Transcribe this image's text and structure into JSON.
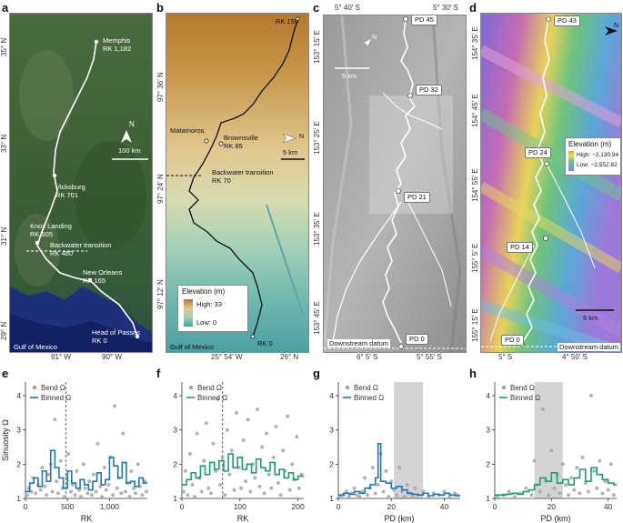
{
  "panels": {
    "a": {
      "label": "a",
      "lat_ticks": [
        "35° N",
        "33° N",
        "31° N",
        "29° N"
      ],
      "lon_ticks": [
        "91° W",
        "90° W"
      ],
      "sites": [
        {
          "name": "Memphis",
          "rk": "RK 1,182"
        },
        {
          "name": "Vicksburg",
          "rk": "RK 701"
        },
        {
          "name": "Knox Landing",
          "rk": "RK 505"
        },
        {
          "name": "Backwater transition",
          "rk": "RK 480"
        },
        {
          "name": "New Orleans",
          "rk": "RK 165"
        },
        {
          "name": "Head of Passes",
          "rk": "RK 0"
        }
      ],
      "scale_label": "100 km",
      "north_label": "N",
      "sea_label": "Gulf of Mexico"
    },
    "b": {
      "label": "b",
      "lat_ticks": [
        "97° 36′ N",
        "97° 24′ N",
        "97° 12′ N"
      ],
      "lon_ticks": [
        "25° 54′ W",
        "26° N"
      ],
      "sites": [
        {
          "name": "RK 150",
          "rk": ""
        },
        {
          "name": "Matamoros",
          "rk": ""
        },
        {
          "name": "Brownsville",
          "rk": "RK 85"
        },
        {
          "name": "Backwater transition",
          "rk": "RK 70"
        },
        {
          "name": "RK 0",
          "rk": ""
        }
      ],
      "scale_label": "5 km",
      "north_label": "N",
      "sea_label": "Gulf of Mexico",
      "legend_title": "Elevation (m)",
      "legend_high": "High: 33",
      "legend_low": "Low: 0"
    },
    "c": {
      "label": "c",
      "lat_ticks": [
        "153° 15′ E",
        "153° 25′ E",
        "153° 35′ E",
        "153° 45′ E"
      ],
      "lon_top": [
        "5° 40′ S",
        "5° 30′ S"
      ],
      "lon_bottom": [
        "6° 5′ S",
        "5° 55′ S"
      ],
      "pd_labels": [
        "PD 45",
        "PD 32",
        "PD 21",
        "PD 0"
      ],
      "scale_label": "5 km",
      "north_label": "N",
      "datum_label": "Downstream datum"
    },
    "d": {
      "label": "d",
      "lat_ticks": [
        "154° 35′ E",
        "154° 45′ E",
        "154° 55′ E",
        "155° 5′ E",
        "155° 15′ E"
      ],
      "lon_bottom": [
        "5° S",
        "4° 50′ S"
      ],
      "pd_labels": [
        "PD 43",
        "PD 24",
        "PD 14",
        "PD 0"
      ],
      "scale_label": "5 km",
      "north_label": "N",
      "datum_label": "Downstream datum",
      "legend_title": "Elevation (m)",
      "legend_high": "High: −2,130.94",
      "legend_low": "Low: −2,552.82"
    }
  },
  "legend": {
    "bend": "Bend Ω",
    "binned": "Binned Ω"
  },
  "colors": {
    "blue": "#1f77b4",
    "green": "#1a9e77",
    "gray": "#a6a6a6",
    "shade": "#d4d4d4"
  },
  "chart_data": [
    {
      "id": "e",
      "label": "e",
      "type": "scatter",
      "xlabel": "RK",
      "ylabel": "Sinuosity Ω",
      "xlim": [
        0,
        1450
      ],
      "ylim": [
        1,
        4.4
      ],
      "xticks": [
        0,
        500,
        1000
      ],
      "xticklabels": [
        "0",
        "500",
        "1,000"
      ],
      "yticks": [
        1,
        2,
        3,
        4
      ],
      "yticklabels": [
        "1",
        "2",
        "3",
        "4"
      ],
      "vline": 480,
      "shade": null,
      "binned_color": "#1f77b4",
      "bend_points": [
        [
          20,
          1.1
        ],
        [
          40,
          1.3
        ],
        [
          70,
          1.2
        ],
        [
          90,
          1.6
        ],
        [
          120,
          1.15
        ],
        [
          150,
          1.4
        ],
        [
          180,
          1.25
        ],
        [
          200,
          1.9
        ],
        [
          230,
          1.35
        ],
        [
          250,
          1.1
        ],
        [
          270,
          1.7
        ],
        [
          300,
          2.0
        ],
        [
          320,
          1.2
        ],
        [
          350,
          3.3
        ],
        [
          370,
          1.5
        ],
        [
          390,
          1.15
        ],
        [
          420,
          2.1
        ],
        [
          440,
          1.3
        ],
        [
          460,
          1.05
        ],
        [
          490,
          1.6
        ],
        [
          510,
          2.3
        ],
        [
          540,
          1.2
        ],
        [
          560,
          1.4
        ],
        [
          590,
          1.1
        ],
        [
          610,
          1.8
        ],
        [
          640,
          1.25
        ],
        [
          660,
          1.05
        ],
        [
          690,
          2.0
        ],
        [
          710,
          1.3
        ],
        [
          740,
          1.15
        ],
        [
          760,
          1.5
        ],
        [
          790,
          1.1
        ],
        [
          810,
          1.7
        ],
        [
          840,
          1.2
        ],
        [
          860,
          2.6
        ],
        [
          890,
          1.35
        ],
        [
          910,
          1.05
        ],
        [
          940,
          1.9
        ],
        [
          960,
          1.25
        ],
        [
          990,
          1.4
        ],
        [
          1010,
          2.2
        ],
        [
          1040,
          1.1
        ],
        [
          1060,
          3.7
        ],
        [
          1090,
          1.3
        ],
        [
          1110,
          1.6
        ],
        [
          1140,
          1.15
        ],
        [
          1160,
          2.9
        ],
        [
          1190,
          1.2
        ],
        [
          1210,
          1.45
        ],
        [
          1240,
          1.05
        ],
        [
          1260,
          1.8
        ],
        [
          1290,
          1.3
        ],
        [
          1310,
          1.15
        ],
        [
          1340,
          2.0
        ],
        [
          1360,
          1.35
        ],
        [
          1390,
          1.1
        ],
        [
          1420,
          1.5
        ],
        [
          1440,
          1.2
        ]
      ],
      "binned": [
        [
          0,
          1.2
        ],
        [
          50,
          1.45
        ],
        [
          100,
          1.6
        ],
        [
          150,
          1.35
        ],
        [
          200,
          1.8
        ],
        [
          250,
          1.5
        ],
        [
          300,
          2.4
        ],
        [
          350,
          1.9
        ],
        [
          400,
          1.6
        ],
        [
          450,
          1.3
        ],
        [
          500,
          1.8
        ],
        [
          550,
          1.45
        ],
        [
          600,
          1.3
        ],
        [
          650,
          1.55
        ],
        [
          700,
          1.4
        ],
        [
          750,
          1.25
        ],
        [
          800,
          1.5
        ],
        [
          850,
          1.75
        ],
        [
          900,
          1.4
        ],
        [
          950,
          1.55
        ],
        [
          1000,
          2.2
        ],
        [
          1050,
          1.95
        ],
        [
          1100,
          1.6
        ],
        [
          1150,
          2.05
        ],
        [
          1200,
          1.45
        ],
        [
          1250,
          1.5
        ],
        [
          1300,
          1.35
        ],
        [
          1350,
          1.6
        ],
        [
          1400,
          1.45
        ],
        [
          1450,
          1.45
        ]
      ]
    },
    {
      "id": "f",
      "label": "f",
      "type": "scatter",
      "xlabel": "RK",
      "ylabel": "",
      "xlim": [
        0,
        210
      ],
      "ylim": [
        1,
        4.4
      ],
      "xticks": [
        0,
        100,
        200
      ],
      "xticklabels": [
        "0",
        "100",
        "200"
      ],
      "yticks": [
        1,
        2,
        3,
        4
      ],
      "yticklabels": [
        "1",
        "2",
        "3",
        "4"
      ],
      "vline": 70,
      "shade": null,
      "binned_color": "#1a9e77",
      "bend_points": [
        [
          3,
          1.2
        ],
        [
          6,
          1.8
        ],
        [
          10,
          1.1
        ],
        [
          14,
          2.3
        ],
        [
          18,
          1.4
        ],
        [
          22,
          1.05
        ],
        [
          26,
          2.9
        ],
        [
          30,
          1.6
        ],
        [
          34,
          1.2
        ],
        [
          38,
          2.1
        ],
        [
          42,
          3.2
        ],
        [
          46,
          1.3
        ],
        [
          50,
          1.15
        ],
        [
          54,
          2.6
        ],
        [
          58,
          1.8
        ],
        [
          62,
          3.9
        ],
        [
          66,
          1.4
        ],
        [
          70,
          2.2
        ],
        [
          74,
          1.1
        ],
        [
          78,
          3.0
        ],
        [
          82,
          1.7
        ],
        [
          86,
          2.4
        ],
        [
          90,
          1.25
        ],
        [
          94,
          3.5
        ],
        [
          98,
          1.9
        ],
        [
          102,
          1.3
        ],
        [
          106,
          2.7
        ],
        [
          110,
          1.5
        ],
        [
          114,
          3.3
        ],
        [
          118,
          1.2
        ],
        [
          122,
          2.0
        ],
        [
          126,
          1.6
        ],
        [
          130,
          3.6
        ],
        [
          134,
          1.35
        ],
        [
          138,
          2.5
        ],
        [
          142,
          1.15
        ],
        [
          146,
          2.9
        ],
        [
          150,
          1.7
        ],
        [
          154,
          1.3
        ],
        [
          158,
          2.2
        ],
        [
          162,
          3.1
        ],
        [
          166,
          1.45
        ],
        [
          170,
          1.1
        ],
        [
          174,
          2.4
        ],
        [
          178,
          1.8
        ],
        [
          182,
          3.4
        ],
        [
          186,
          1.25
        ],
        [
          190,
          2.0
        ],
        [
          194,
          1.55
        ],
        [
          198,
          2.8
        ],
        [
          202,
          1.3
        ],
        [
          206,
          1.7
        ]
      ],
      "binned": [
        [
          0,
          1.4
        ],
        [
          8,
          1.55
        ],
        [
          16,
          1.75
        ],
        [
          24,
          1.6
        ],
        [
          32,
          1.95
        ],
        [
          40,
          1.7
        ],
        [
          48,
          2.05
        ],
        [
          56,
          1.85
        ],
        [
          64,
          2.1
        ],
        [
          72,
          1.8
        ],
        [
          80,
          2.3
        ],
        [
          88,
          1.9
        ],
        [
          96,
          2.2
        ],
        [
          104,
          1.85
        ],
        [
          112,
          2.0
        ],
        [
          120,
          1.75
        ],
        [
          128,
          2.15
        ],
        [
          136,
          1.9
        ],
        [
          144,
          1.8
        ],
        [
          152,
          2.05
        ],
        [
          160,
          1.7
        ],
        [
          168,
          1.85
        ],
        [
          176,
          1.6
        ],
        [
          184,
          1.75
        ],
        [
          192,
          1.55
        ],
        [
          200,
          1.65
        ],
        [
          210,
          1.65
        ]
      ]
    },
    {
      "id": "g",
      "label": "g",
      "type": "scatter",
      "xlabel": "PD (km)",
      "ylabel": "",
      "xlim": [
        0,
        46
      ],
      "ylim": [
        1,
        4.4
      ],
      "xticks": [
        0,
        20,
        40
      ],
      "xticklabels": [
        "0",
        "20",
        "40"
      ],
      "yticks": [
        1,
        2,
        3,
        4
      ],
      "yticklabels": [
        "1",
        "2",
        "3",
        "4"
      ],
      "vline": null,
      "shade": [
        21,
        32
      ],
      "binned_color": "#1f77b4",
      "bend_points": [
        [
          1,
          1.05
        ],
        [
          2,
          1.1
        ],
        [
          3,
          1.2
        ],
        [
          4,
          1.05
        ],
        [
          5,
          1.15
        ],
        [
          6,
          1.3
        ],
        [
          7,
          1.1
        ],
        [
          8,
          1.05
        ],
        [
          9,
          1.2
        ],
        [
          10,
          1.6
        ],
        [
          11,
          1.1
        ],
        [
          12,
          1.3
        ],
        [
          13,
          1.9
        ],
        [
          14,
          1.15
        ],
        [
          15,
          1.4
        ],
        [
          16,
          2.3
        ],
        [
          17,
          1.2
        ],
        [
          18,
          1.8
        ],
        [
          19,
          1.05
        ],
        [
          20,
          1.5
        ],
        [
          21,
          1.25
        ],
        [
          22,
          1.1
        ],
        [
          23,
          1.9
        ],
        [
          24,
          1.2
        ],
        [
          25,
          1.05
        ],
        [
          26,
          1.4
        ],
        [
          27,
          1.15
        ],
        [
          28,
          1.05
        ],
        [
          29,
          1.3
        ],
        [
          30,
          1.1
        ],
        [
          32,
          1.2
        ],
        [
          34,
          1.05
        ],
        [
          36,
          1.15
        ],
        [
          38,
          1.1
        ],
        [
          40,
          1.2
        ],
        [
          42,
          1.05
        ],
        [
          44,
          1.15
        ],
        [
          45,
          1.1
        ]
      ],
      "binned": [
        [
          0,
          1.1
        ],
        [
          2,
          1.15
        ],
        [
          4,
          1.12
        ],
        [
          6,
          1.2
        ],
        [
          8,
          1.15
        ],
        [
          10,
          1.3
        ],
        [
          12,
          1.4
        ],
        [
          14,
          1.6
        ],
        [
          15,
          2.6
        ],
        [
          16,
          1.5
        ],
        [
          18,
          1.45
        ],
        [
          20,
          1.3
        ],
        [
          22,
          1.35
        ],
        [
          24,
          1.25
        ],
        [
          26,
          1.15
        ],
        [
          28,
          1.12
        ],
        [
          30,
          1.1
        ],
        [
          32,
          1.15
        ],
        [
          34,
          1.08
        ],
        [
          36,
          1.12
        ],
        [
          38,
          1.1
        ],
        [
          40,
          1.15
        ],
        [
          42,
          1.1
        ],
        [
          44,
          1.08
        ],
        [
          46,
          1.08
        ]
      ]
    },
    {
      "id": "h",
      "label": "h",
      "type": "scatter",
      "xlabel": "PD (km)",
      "ylabel": "",
      "xlim": [
        0,
        43
      ],
      "ylim": [
        1,
        4.4
      ],
      "xticks": [
        0,
        20,
        40
      ],
      "xticklabels": [
        "0",
        "20",
        "40"
      ],
      "yticks": [
        1,
        2,
        3,
        4
      ],
      "yticklabels": [
        "1",
        "2",
        "3",
        "4"
      ],
      "vline": null,
      "shade": [
        14,
        24
      ],
      "binned_color": "#1a9e77",
      "bend_points": [
        [
          1,
          1.05
        ],
        [
          3,
          1.1
        ],
        [
          5,
          1.2
        ],
        [
          7,
          1.05
        ],
        [
          9,
          1.15
        ],
        [
          11,
          1.3
        ],
        [
          13,
          1.1
        ],
        [
          14,
          2.1
        ],
        [
          15,
          1.4
        ],
        [
          16,
          1.2
        ],
        [
          17,
          3.6
        ],
        [
          18,
          1.5
        ],
        [
          19,
          1.1
        ],
        [
          20,
          2.4
        ],
        [
          21,
          1.3
        ],
        [
          22,
          1.7
        ],
        [
          23,
          1.15
        ],
        [
          24,
          2.0
        ],
        [
          25,
          1.4
        ],
        [
          26,
          1.1
        ],
        [
          27,
          1.6
        ],
        [
          28,
          1.25
        ],
        [
          29,
          1.9
        ],
        [
          30,
          1.15
        ],
        [
          31,
          2.2
        ],
        [
          32,
          1.45
        ],
        [
          33,
          1.2
        ],
        [
          34,
          4.0
        ],
        [
          35,
          1.8
        ],
        [
          36,
          1.3
        ],
        [
          37,
          2.1
        ],
        [
          38,
          1.15
        ],
        [
          39,
          1.5
        ],
        [
          40,
          1.25
        ],
        [
          41,
          2.0
        ],
        [
          42,
          1.1
        ]
      ],
      "binned": [
        [
          0,
          1.1
        ],
        [
          2,
          1.1
        ],
        [
          4,
          1.12
        ],
        [
          6,
          1.15
        ],
        [
          8,
          1.12
        ],
        [
          10,
          1.2
        ],
        [
          12,
          1.25
        ],
        [
          14,
          1.4
        ],
        [
          16,
          1.6
        ],
        [
          18,
          1.5
        ],
        [
          20,
          1.75
        ],
        [
          22,
          1.45
        ],
        [
          24,
          1.55
        ],
        [
          26,
          1.4
        ],
        [
          28,
          1.6
        ],
        [
          30,
          1.85
        ],
        [
          32,
          1.5
        ],
        [
          34,
          1.9
        ],
        [
          36,
          1.7
        ],
        [
          38,
          1.55
        ],
        [
          40,
          1.45
        ],
        [
          42,
          1.4
        ],
        [
          43,
          1.4
        ]
      ]
    }
  ]
}
